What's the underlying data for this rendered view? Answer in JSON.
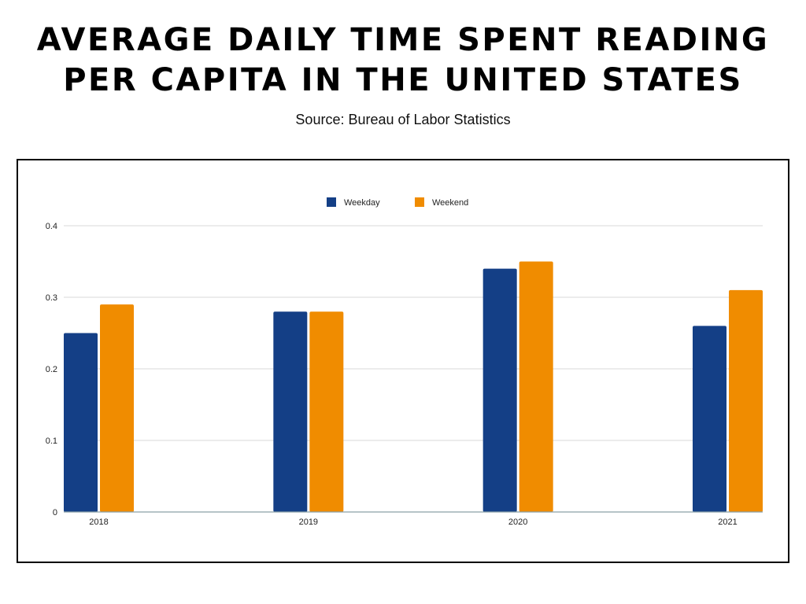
{
  "header": {
    "title": "AVERAGE DAILY TIME SPENT READING PER CAPITA IN THE UNITED STATES",
    "subtitle": "Source: Bureau of Labor Statistics"
  },
  "colors": {
    "weekday": "#143f86",
    "weekend": "#f08c00",
    "grid": "#d9d9d9",
    "axis": "#8aa0a8",
    "text": "#222222"
  },
  "chart_data": {
    "type": "bar",
    "categories": [
      "2018",
      "2019",
      "2020",
      "2021"
    ],
    "series": [
      {
        "name": "Weekday",
        "values": [
          0.25,
          0.28,
          0.34,
          0.26
        ]
      },
      {
        "name": "Weekend",
        "values": [
          0.29,
          0.28,
          0.35,
          0.31
        ]
      }
    ],
    "ylim": [
      0,
      0.4
    ],
    "yticks": [
      "0",
      "0.1",
      "0.2",
      "0.3",
      "0.4"
    ],
    "grid": true,
    "legend": "top-center"
  }
}
